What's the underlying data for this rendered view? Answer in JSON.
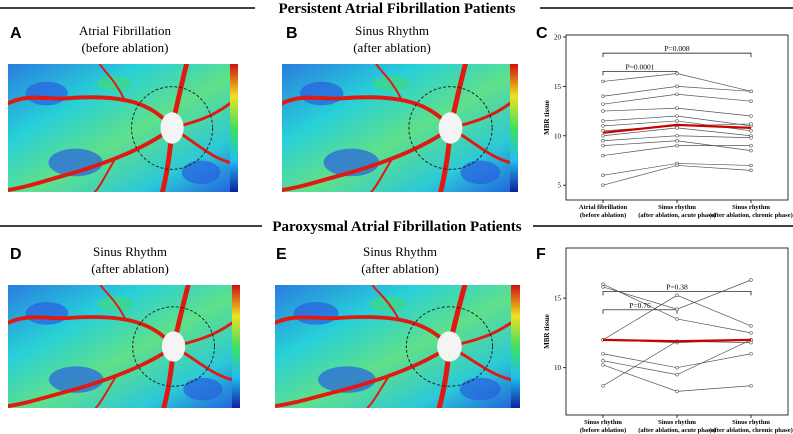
{
  "sections": [
    {
      "title": "Persistent Atrial Fibrillation Patients"
    },
    {
      "title": "Paroxysmal Atrial Fibrillation Patients"
    }
  ],
  "panels": [
    {
      "letter": "A",
      "caption": [
        "Atrial Fibrillation",
        "(before ablation)"
      ]
    },
    {
      "letter": "B",
      "caption": [
        "Sinus Rhythm",
        "(after ablation)"
      ]
    },
    {
      "letter": "D",
      "caption": [
        "Sinus Rhythm",
        "(after ablation)"
      ]
    },
    {
      "letter": "E",
      "caption": [
        "Sinus Rhythm",
        "(after ablation)"
      ]
    }
  ],
  "chart_data": [
    {
      "type": "line",
      "panel": "C",
      "ylabel": "MBR tissue",
      "categories": [
        "Atrial fibrillation\n(before ablation)",
        "Sinus rhythm\n(after ablation, acute phase)",
        "Sinus rhythm\n(after ablation, chronic phase)"
      ],
      "ylim": [
        3.5,
        20.2
      ],
      "yticks": [
        5,
        10,
        15,
        20
      ],
      "annotations": [
        "P=0.0001",
        "P=0.008"
      ],
      "series": [
        {
          "color": "#555555",
          "values": [
            15.5,
            16.3,
            14.5
          ]
        },
        {
          "color": "#555555",
          "values": [
            14,
            15,
            14.5
          ]
        },
        {
          "color": "#555555",
          "values": [
            13.2,
            14.2,
            13.5
          ]
        },
        {
          "color": "#555555",
          "values": [
            12.5,
            12.8,
            12
          ]
        },
        {
          "color": "#555555",
          "values": [
            11.5,
            12,
            11
          ]
        },
        {
          "color": "#555555",
          "values": [
            11,
            11.5,
            10.5
          ]
        },
        {
          "color": "#555555",
          "values": [
            10.5,
            11,
            11.2
          ]
        },
        {
          "color": "#555555",
          "values": [
            10,
            10.8,
            10
          ]
        },
        {
          "color": "#555555",
          "values": [
            9.5,
            10,
            9.8
          ]
        },
        {
          "color": "#555555",
          "values": [
            9,
            9.5,
            8.5
          ]
        },
        {
          "color": "#555555",
          "values": [
            8,
            9,
            9
          ]
        },
        {
          "color": "#555555",
          "values": [
            6,
            7.2,
            7
          ]
        },
        {
          "color": "#555555",
          "values": [
            5,
            7,
            6.5
          ]
        },
        {
          "color": "#cc0000",
          "values": [
            10.3,
            11.1,
            10.8
          ]
        }
      ]
    },
    {
      "type": "line",
      "panel": "F",
      "ylabel": "MBR tissue",
      "categories": [
        "Sinus rhythm\n(before ablation)",
        "Sinus rhythm\n(after ablation, acute phase)",
        "Sinus rhythm\n(after ablation, chronic phase)"
      ],
      "ylim": [
        6.6,
        18.6
      ],
      "yticks": [
        10,
        15
      ],
      "annotations": [
        "P=0.76",
        "P=0.38"
      ],
      "series": [
        {
          "color": "#555555",
          "values": [
            16,
            13.5,
            12.5
          ]
        },
        {
          "color": "#555555",
          "values": [
            15.8,
            14.2,
            16.3
          ]
        },
        {
          "color": "#555555",
          "values": [
            12,
            15.2,
            13
          ]
        },
        {
          "color": "#555555",
          "values": [
            12,
            11.8,
            12
          ]
        },
        {
          "color": "#555555",
          "values": [
            11,
            10,
            11
          ]
        },
        {
          "color": "#555555",
          "values": [
            10.5,
            9.5,
            12
          ]
        },
        {
          "color": "#555555",
          "values": [
            10.2,
            8.3,
            8.7
          ]
        },
        {
          "color": "#555555",
          "values": [
            8.7,
            11.9,
            11.8
          ]
        },
        {
          "color": "#cc0000",
          "values": [
            12,
            11.9,
            12
          ]
        }
      ]
    }
  ]
}
